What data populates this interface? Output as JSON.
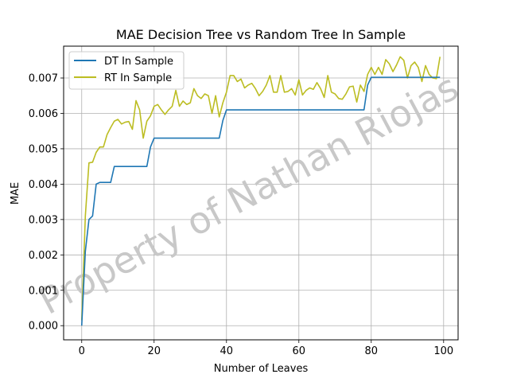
{
  "chart_data": {
    "type": "line",
    "title": "MAE Decision Tree vs Random Tree In Sample",
    "xlabel": "Number of Leaves",
    "ylabel": "MAE",
    "xlim": [
      -5,
      104
    ],
    "ylim": [
      -0.0004,
      0.0079
    ],
    "xticks": [
      0,
      20,
      40,
      60,
      80,
      100
    ],
    "xtick_labels": [
      "0",
      "20",
      "40",
      "60",
      "80",
      "100"
    ],
    "yticks": [
      0,
      0.001,
      0.002,
      0.003,
      0.004,
      0.005,
      0.006,
      0.007
    ],
    "ytick_labels": [
      "0.000",
      "0.001",
      "0.002",
      "0.003",
      "0.004",
      "0.005",
      "0.006",
      "0.007"
    ],
    "grid": true,
    "legend_position": "top-left",
    "watermark": "Property of Nathan Riojas",
    "series": [
      {
        "name": "DT In Sample",
        "color": "#1f77b4",
        "x": [
          0,
          1,
          2,
          3,
          4,
          5,
          6,
          7,
          8,
          9,
          10,
          11,
          12,
          13,
          14,
          15,
          16,
          17,
          18,
          19,
          20,
          21,
          22,
          23,
          24,
          25,
          26,
          27,
          28,
          29,
          30,
          31,
          32,
          33,
          34,
          35,
          36,
          37,
          38,
          39,
          40,
          41,
          42,
          43,
          44,
          45,
          46,
          47,
          48,
          49,
          50,
          51,
          52,
          53,
          54,
          55,
          56,
          57,
          58,
          59,
          60,
          61,
          62,
          63,
          64,
          65,
          66,
          67,
          68,
          69,
          70,
          71,
          72,
          73,
          74,
          75,
          76,
          77,
          78,
          79,
          80,
          81,
          82,
          83,
          84,
          85,
          86,
          87,
          88,
          89,
          90,
          91,
          92,
          93,
          94,
          95,
          96,
          97,
          98,
          99
        ],
        "values": [
          0,
          0.0021,
          0.003,
          0.0031,
          0.004,
          0.00405,
          0.00405,
          0.00405,
          0.00405,
          0.0045,
          0.0045,
          0.0045,
          0.0045,
          0.0045,
          0.0045,
          0.0045,
          0.0045,
          0.0045,
          0.0045,
          0.00505,
          0.0053,
          0.0053,
          0.0053,
          0.0053,
          0.0053,
          0.0053,
          0.0053,
          0.0053,
          0.0053,
          0.0053,
          0.0053,
          0.0053,
          0.0053,
          0.0053,
          0.0053,
          0.0053,
          0.0053,
          0.0053,
          0.0053,
          0.0058,
          0.0061,
          0.0061,
          0.0061,
          0.0061,
          0.0061,
          0.0061,
          0.0061,
          0.0061,
          0.0061,
          0.0061,
          0.0061,
          0.0061,
          0.0061,
          0.0061,
          0.0061,
          0.0061,
          0.0061,
          0.0061,
          0.0061,
          0.0061,
          0.0061,
          0.0061,
          0.0061,
          0.0061,
          0.0061,
          0.0061,
          0.0061,
          0.0061,
          0.0061,
          0.0061,
          0.0061,
          0.0061,
          0.0061,
          0.0061,
          0.0061,
          0.0061,
          0.0061,
          0.0061,
          0.0061,
          0.0068,
          0.00702,
          0.00702,
          0.00702,
          0.00702,
          0.00702,
          0.00702,
          0.00702,
          0.00702,
          0.00702,
          0.00702,
          0.00702,
          0.00702,
          0.00702,
          0.00702,
          0.00702,
          0.00702,
          0.00702,
          0.00702,
          0.00702,
          0.00702
        ]
      },
      {
        "name": "RT In Sample",
        "color": "#bcbd22",
        "x": [
          0,
          1,
          2,
          3,
          4,
          5,
          6,
          7,
          8,
          9,
          10,
          11,
          12,
          13,
          14,
          15,
          16,
          17,
          18,
          19,
          20,
          21,
          22,
          23,
          24,
          25,
          26,
          27,
          28,
          29,
          30,
          31,
          32,
          33,
          34,
          35,
          36,
          37,
          38,
          39,
          40,
          41,
          42,
          43,
          44,
          45,
          46,
          47,
          48,
          49,
          50,
          51,
          52,
          53,
          54,
          55,
          56,
          57,
          58,
          59,
          60,
          61,
          62,
          63,
          64,
          65,
          66,
          67,
          68,
          69,
          70,
          71,
          72,
          73,
          74,
          75,
          76,
          77,
          78,
          79,
          80,
          81,
          82,
          83,
          84,
          85,
          86,
          87,
          88,
          89,
          90,
          91,
          92,
          93,
          94,
          95,
          96,
          97,
          98,
          99
        ],
        "values": [
          0.00015,
          0.0031,
          0.0046,
          0.00462,
          0.0049,
          0.00505,
          0.00505,
          0.0054,
          0.0056,
          0.00578,
          0.00583,
          0.0057,
          0.00575,
          0.00577,
          0.00555,
          0.00636,
          0.0061,
          0.0053,
          0.00578,
          0.00593,
          0.0062,
          0.00625,
          0.0061,
          0.00597,
          0.0061,
          0.0062,
          0.00665,
          0.0062,
          0.00635,
          0.00625,
          0.0063,
          0.0067,
          0.0065,
          0.00642,
          0.00655,
          0.0065,
          0.006,
          0.0065,
          0.0059,
          0.0063,
          0.0066,
          0.00707,
          0.00707,
          0.0069,
          0.00697,
          0.00672,
          0.0068,
          0.00685,
          0.0067,
          0.0065,
          0.00662,
          0.0068,
          0.00707,
          0.0066,
          0.0066,
          0.00707,
          0.0066,
          0.00662,
          0.0067,
          0.00652,
          0.00695,
          0.00652,
          0.00665,
          0.00672,
          0.00668,
          0.00687,
          0.0067,
          0.00645,
          0.00707,
          0.0066,
          0.00655,
          0.00642,
          0.0064,
          0.00655,
          0.00675,
          0.00677,
          0.00632,
          0.0068,
          0.00662,
          0.0071,
          0.0073,
          0.0071,
          0.0073,
          0.0071,
          0.00752,
          0.0074,
          0.00718,
          0.00737,
          0.0076,
          0.0075,
          0.007,
          0.00735,
          0.00745,
          0.0073,
          0.0069,
          0.00735,
          0.0071,
          0.007,
          0.00698,
          0.0076
        ]
      }
    ]
  }
}
